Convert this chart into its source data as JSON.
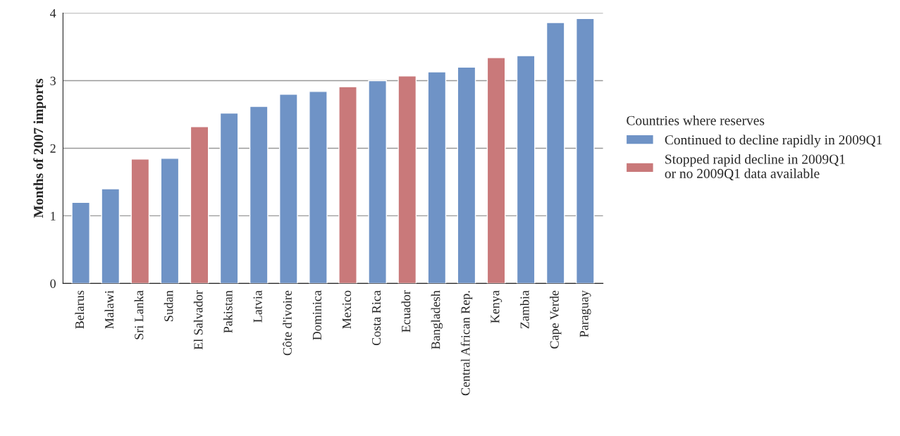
{
  "chart_data": {
    "type": "bar",
    "ylabel": "Months of 2007 imports",
    "legend_title": "Countries where reserves",
    "categories": [
      "Belarus",
      "Malawi",
      "Sri Lanka",
      "Sudan",
      "El Salvador",
      "Pakistan",
      "Latvia",
      "Côte d'ivoire",
      "Dominica",
      "Mexico",
      "Costa Rica",
      "Ecuador",
      "Bangladesh",
      "Central African Rep.",
      "Kenya",
      "Zambia",
      "Cape Verde",
      "Paraguay"
    ],
    "stacked": true,
    "series": [
      {
        "name": "Continued to decline rapidly in 2009Q1",
        "color": "#6f93c6",
        "values": [
          1.2,
          1.4,
          null,
          1.85,
          null,
          2.52,
          2.62,
          2.8,
          2.84,
          null,
          3.0,
          null,
          3.13,
          3.2,
          null,
          3.37,
          3.86,
          3.92
        ]
      },
      {
        "name": "Stopped rapid decline in 2009Q1\nor no 2009Q1 data available",
        "color": "#c9797a",
        "values": [
          null,
          null,
          1.84,
          null,
          2.32,
          null,
          null,
          null,
          null,
          2.91,
          null,
          3.07,
          null,
          null,
          3.34,
          null,
          null,
          null
        ]
      }
    ],
    "ylim": [
      0,
      4
    ],
    "yticks": [
      0,
      1,
      2,
      3,
      4
    ],
    "grid": "y",
    "legend": "right"
  }
}
